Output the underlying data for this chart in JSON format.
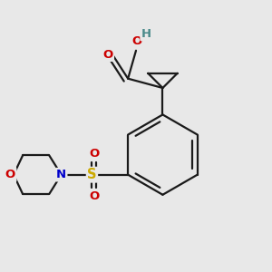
{
  "bg_color": "#e8e8e8",
  "bond_color": "#1a1a1a",
  "atom_colors": {
    "O": "#cc0000",
    "N": "#0000cc",
    "S": "#ccaa00",
    "H": "#4a8a8a",
    "C": "#1a1a1a"
  },
  "font_size": 9.5,
  "bond_width": 1.6
}
